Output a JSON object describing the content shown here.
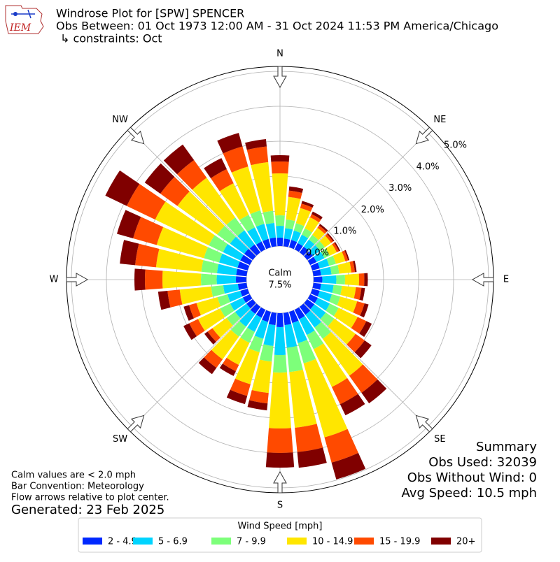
{
  "chart_data": {
    "type": "windrose",
    "logo_text": "IEM",
    "title": "Windrose Plot for [SPW] SPENCER",
    "subtitle": "Obs Between: 01 Oct 1973 12:00 AM - 31 Oct 2024 11:53 PM America/Chicago",
    "constraints": "↳ constraints: Oct",
    "compass": [
      "N",
      "NE",
      "E",
      "SE",
      "S",
      "SW",
      "W",
      "NW"
    ],
    "categories": [
      null,
      null,
      null,
      null,
      null,
      null,
      null,
      null,
      null,
      null,
      null,
      null,
      null,
      null,
      null,
      null,
      null,
      null,
      null,
      null,
      null,
      null,
      null,
      null,
      null,
      null,
      null,
      null,
      null,
      null,
      null,
      null,
      null,
      null,
      null,
      null
    ],
    "ylim": [
      0,
      5.14
    ],
    "yticks": [
      {
        "value": 0,
        "label": "0.0%"
      },
      {
        "value": 1,
        "label": "1.0%"
      },
      {
        "value": 2,
        "label": "2.0%"
      },
      {
        "value": 3,
        "label": "3.0%"
      },
      {
        "value": 4,
        "label": "4.0%"
      },
      {
        "value": 5,
        "label": "5.0%"
      }
    ],
    "grid": true,
    "calm_label": "Calm",
    "calm_value": {
      "value": 7.5,
      "label": "7.5%"
    },
    "legend_title": "Wind Speed [mph]",
    "series": [
      {
        "name": "2 - 4.9",
        "color": "#0028ff",
        "values": [
          0.24,
          0.22,
          0.22,
          0.2,
          0.2,
          0.2,
          0.2,
          0.22,
          0.22,
          0.25,
          0.22,
          0.22,
          0.24,
          0.25,
          0.28,
          0.3,
          0.33,
          0.35,
          0.4,
          0.35,
          0.3,
          0.25,
          0.25,
          0.22,
          0.22,
          0.22,
          0.25,
          0.3,
          0.3,
          0.3,
          0.3,
          0.3,
          0.28,
          0.25,
          0.25,
          0.25
        ]
      },
      {
        "name": "5 - 6.9",
        "color": "#00d4ff",
        "values": [
          0.34,
          0.3,
          0.28,
          0.27,
          0.25,
          0.25,
          0.25,
          0.28,
          0.3,
          0.4,
          0.36,
          0.36,
          0.38,
          0.4,
          0.45,
          0.5,
          0.6,
          0.65,
          0.8,
          0.6,
          0.5,
          0.45,
          0.45,
          0.4,
          0.4,
          0.38,
          0.42,
          0.55,
          0.55,
          0.55,
          0.55,
          0.5,
          0.5,
          0.45,
          0.45,
          0.42
        ]
      },
      {
        "name": "7 - 9.9",
        "color": "#7dff7a",
        "values": [
          0.3,
          0.25,
          0.22,
          0.2,
          0.17,
          0.17,
          0.17,
          0.2,
          0.22,
          0.25,
          0.24,
          0.25,
          0.28,
          0.3,
          0.4,
          0.45,
          0.6,
          0.7,
          0.5,
          0.45,
          0.4,
          0.35,
          0.35,
          0.3,
          0.32,
          0.3,
          0.35,
          0.45,
          0.45,
          0.45,
          0.45,
          0.45,
          0.45,
          0.4,
          0.4,
          0.35
        ]
      },
      {
        "name": "10 - 14.9",
        "color": "#ffe600",
        "values": [
          1.2,
          0.65,
          0.45,
          0.35,
          0.25,
          0.22,
          0.22,
          0.28,
          0.35,
          0.4,
          0.4,
          0.5,
          0.6,
          0.75,
          1.3,
          1.2,
          2.2,
          1.6,
          1.6,
          0.9,
          0.95,
          0.7,
          0.8,
          0.5,
          0.7,
          0.62,
          0.9,
          1.1,
          1.3,
          1.4,
          1.7,
          1.4,
          1.4,
          1.0,
          1.3,
          1.4
        ]
      },
      {
        "name": "15 - 19.9",
        "color": "#ff4a00",
        "values": [
          0.34,
          0.18,
          0.13,
          0.1,
          0.08,
          0.07,
          0.07,
          0.08,
          0.1,
          0.15,
          0.16,
          0.22,
          0.28,
          0.32,
          0.6,
          0.55,
          0.75,
          0.7,
          0.7,
          0.3,
          0.35,
          0.2,
          0.3,
          0.17,
          0.28,
          0.22,
          0.35,
          0.5,
          0.6,
          0.7,
          0.9,
          0.6,
          0.62,
          0.45,
          0.6,
          0.45
        ]
      },
      {
        "name": "20+",
        "color": "#800000",
        "values": [
          0.18,
          0.12,
          0.08,
          0.08,
          0.05,
          0.04,
          0.04,
          0.04,
          0.05,
          0.1,
          0.1,
          0.12,
          0.17,
          0.24,
          0.37,
          0.35,
          0.5,
          0.45,
          0.42,
          0.2,
          0.24,
          0.15,
          0.22,
          0.11,
          0.18,
          0.16,
          0.27,
          0.3,
          0.44,
          0.48,
          0.68,
          0.55,
          0.55,
          0.35,
          0.4,
          0.21
        ]
      }
    ],
    "notes": [
      "Calm values are < 2.0 mph",
      "Bar Convention: Meteorology",
      "Flow arrows relative to plot center."
    ],
    "generated": "Generated: 23 Feb 2025",
    "summary": [
      "Summary",
      "Obs Used: 32039",
      "Obs Without Wind: 0",
      "Avg Speed: 10.5 mph"
    ]
  }
}
